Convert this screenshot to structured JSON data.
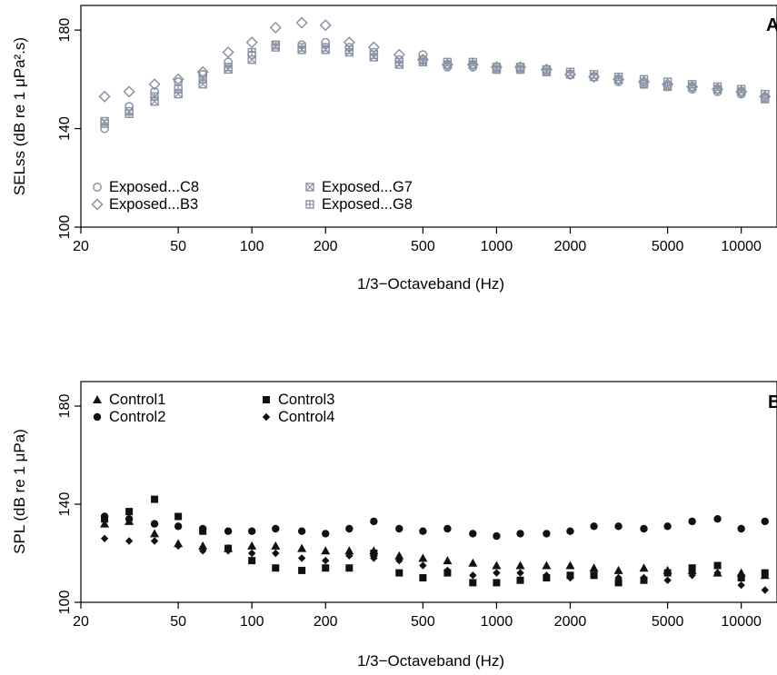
{
  "colors": {
    "exposed": "#8a93a6",
    "control": "#111111",
    "axis": "#000000",
    "background": "#ffffff"
  },
  "chart_data": [
    {
      "type": "scatter",
      "panel_label": "A",
      "title": "",
      "xlabel": "1/3−Octaveband (Hz)",
      "ylabel": "SELss (dB re 1 μPa².s)",
      "xscale": "log",
      "xlim": [
        20,
        14000
      ],
      "ylim": [
        100,
        190
      ],
      "xticks": [
        20,
        50,
        100,
        200,
        500,
        1000,
        2000,
        5000,
        10000
      ],
      "xticklabels": [
        "20",
        "50",
        "100",
        "200",
        "500",
        "1000",
        "2000",
        "5000",
        "10000"
      ],
      "yticks": [
        100,
        140,
        180
      ],
      "yticklabels": [
        "100",
        "140",
        "180"
      ],
      "grid": false,
      "legend": {
        "placement": "bottom-left",
        "columns": 2
      },
      "x": [
        25,
        31.5,
        40,
        50,
        63,
        80,
        100,
        125,
        160,
        200,
        250,
        315,
        400,
        500,
        630,
        800,
        1000,
        1250,
        1600,
        2000,
        2500,
        3150,
        4000,
        5000,
        6300,
        8000,
        10000,
        12500
      ],
      "series": [
        {
          "name": "Exposed...C8",
          "marker": "circle",
          "values": [
            140,
            149,
            155,
            159,
            162,
            167,
            170,
            174,
            174,
            175,
            173,
            171,
            168,
            170,
            165,
            165,
            164,
            164,
            163,
            162,
            161,
            159,
            158,
            157,
            156,
            155,
            154,
            152
          ]
        },
        {
          "name": "Exposed...B3",
          "marker": "diamond",
          "values": [
            153,
            155,
            158,
            160,
            163,
            171,
            175,
            181,
            183,
            182,
            175,
            173,
            170,
            168,
            166,
            166,
            165,
            165,
            164,
            162,
            161,
            160,
            159,
            158,
            157,
            156,
            155,
            153
          ]
        },
        {
          "name": "Exposed...G7",
          "marker": "square-x",
          "values": [
            143,
            147,
            151,
            154,
            158,
            164,
            168,
            173,
            172,
            172,
            171,
            169,
            166,
            167,
            166,
            166,
            164,
            164,
            163,
            162,
            161,
            160,
            158,
            157,
            157,
            156,
            155,
            152
          ]
        },
        {
          "name": "Exposed...G8",
          "marker": "square-plus",
          "values": [
            142,
            146,
            153,
            156,
            160,
            165,
            171,
            174,
            173,
            173,
            172,
            170,
            167,
            168,
            167,
            167,
            165,
            165,
            164,
            163,
            162,
            161,
            160,
            159,
            158,
            157,
            156,
            154
          ]
        }
      ]
    },
    {
      "type": "scatter",
      "panel_label": "B",
      "title": "",
      "xlabel": "1/3−Octaveband (Hz)",
      "ylabel": "SPL (dB re 1 μPa)",
      "xscale": "log",
      "xlim": [
        20,
        14000
      ],
      "ylim": [
        100,
        190
      ],
      "xticks": [
        20,
        50,
        100,
        200,
        500,
        1000,
        2000,
        5000,
        10000
      ],
      "xticklabels": [
        "20",
        "50",
        "100",
        "200",
        "500",
        "1000",
        "2000",
        "5000",
        "10000"
      ],
      "yticks": [
        100,
        140,
        180
      ],
      "yticklabels": [
        "100",
        "140",
        "180"
      ],
      "grid": false,
      "legend": {
        "placement": "top-left",
        "columns": 2
      },
      "x": [
        25,
        31.5,
        40,
        50,
        63,
        80,
        100,
        125,
        160,
        200,
        250,
        315,
        400,
        500,
        630,
        800,
        1000,
        1250,
        1600,
        2000,
        2500,
        3150,
        4000,
        5000,
        6300,
        8000,
        10000,
        12500
      ],
      "series": [
        {
          "name": "Control1",
          "marker": "triangle",
          "values": [
            132,
            133,
            128,
            124,
            123,
            122,
            123,
            123,
            122,
            121,
            121,
            121,
            119,
            118,
            117,
            116,
            115,
            115,
            115,
            115,
            114,
            113,
            114,
            113,
            113,
            112,
            112,
            111
          ]
        },
        {
          "name": "Control2",
          "marker": "circle",
          "values": [
            135,
            134,
            132,
            131,
            130,
            129,
            129,
            130,
            129,
            128,
            130,
            133,
            130,
            129,
            130,
            128,
            127,
            128,
            128,
            129,
            131,
            131,
            130,
            131,
            133,
            134,
            130,
            133
          ]
        },
        {
          "name": "Control3",
          "marker": "square",
          "values": [
            134,
            137,
            142,
            135,
            129,
            122,
            117,
            114,
            113,
            114,
            114,
            120,
            112,
            110,
            112,
            108,
            108,
            109,
            110,
            111,
            111,
            108,
            109,
            112,
            114,
            115,
            110,
            112
          ]
        },
        {
          "name": "Control4",
          "marker": "diamond",
          "values": [
            126,
            125,
            125,
            123,
            121,
            121,
            120,
            120,
            118,
            117,
            119,
            118,
            117,
            115,
            113,
            111,
            112,
            112,
            111,
            110,
            111,
            110,
            110,
            109,
            111,
            112,
            107,
            105
          ]
        }
      ]
    }
  ]
}
